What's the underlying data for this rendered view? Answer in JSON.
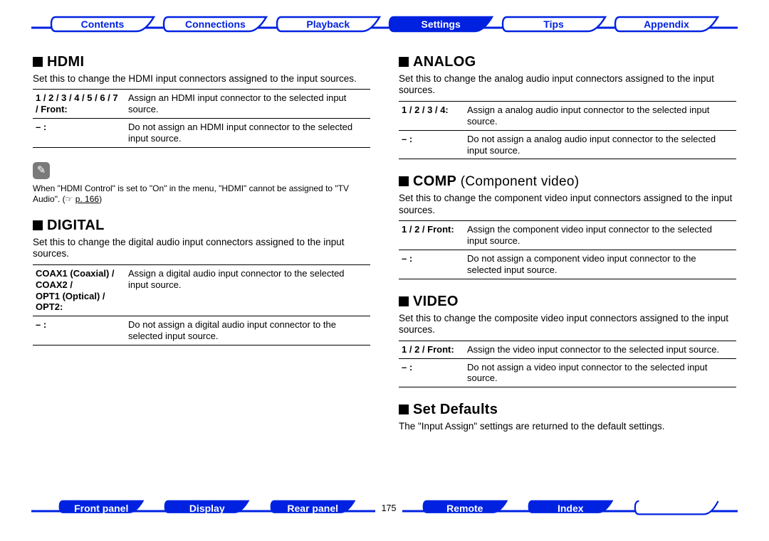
{
  "colors": {
    "brand": "#0022e0",
    "tab_stroke": "#0022e0",
    "tab_fill_active": "#0022e0",
    "tab_fill_inactive": "#ffffff",
    "text_active": "#ffffff",
    "text_inactive": "#0022e0",
    "rule": "#000000",
    "note_icon_bg": "#7a7a7a"
  },
  "page_number": "175",
  "topnav": {
    "items": [
      {
        "label": "Contents",
        "active": false
      },
      {
        "label": "Connections",
        "active": false
      },
      {
        "label": "Playback",
        "active": false
      },
      {
        "label": "Settings",
        "active": true
      },
      {
        "label": "Tips",
        "active": false
      },
      {
        "label": "Appendix",
        "active": false
      }
    ]
  },
  "botnav": {
    "items": [
      {
        "label": "Front panel"
      },
      {
        "label": "Display"
      },
      {
        "label": "Rear panel"
      },
      {
        "label": "Remote"
      },
      {
        "label": "Index"
      }
    ]
  },
  "left": {
    "hdmi": {
      "title": "HDMI",
      "desc": "Set this to change the HDMI input connectors assigned to the input sources.",
      "rows": [
        {
          "key": "1 / 2 / 3 / 4 / 5 / 6 / 7 / Front:",
          "val": "Assign an HDMI input connector to the selected input source."
        },
        {
          "key": "– :",
          "val": "Do not assign an HDMI input connector to the selected input source."
        }
      ],
      "note_icon": "✎",
      "note_text_pre": "When \"HDMI Control\" is set to \"On\" in the menu, \"HDMI\" cannot be assigned to \"TV Audio\". (☞",
      "note_link": "p. 166",
      "note_text_post": ")"
    },
    "digital": {
      "title": "DIGITAL",
      "desc": "Set this to change the digital audio input connectors assigned to the input sources.",
      "row0_key_html": "<b>COAX1</b> (Coaxial) <b>/</b><br><b>COAX2 /</b><br><b>OPT1</b> (Optical) <b>/</b><br><b>OPT2:</b>",
      "row0_val": "Assign a digital audio input connector to the selected input source.",
      "row1_key": "– :",
      "row1_val": "Do not assign a digital audio input connector to the selected input source."
    }
  },
  "right": {
    "analog": {
      "title": "ANALOG",
      "desc": "Set this to change the analog audio input connectors assigned to the input sources.",
      "rows": [
        {
          "key": "1 / 2 / 3 / 4:",
          "val": "Assign a analog audio input connector to the selected input source."
        },
        {
          "key": "– :",
          "val": "Do not assign a analog audio input connector to the selected input source."
        }
      ]
    },
    "comp": {
      "title": "COMP",
      "subtitle": "(Component video)",
      "desc": "Set this to change the component video input connectors assigned to the input sources.",
      "rows": [
        {
          "key": "1 / 2 / Front:",
          "val": "Assign the component video input connector to the selected input source."
        },
        {
          "key": "– :",
          "val": "Do not assign a component video input connector to the selected input source."
        }
      ]
    },
    "video": {
      "title": "VIDEO",
      "desc": "Set this to change the composite video input connectors assigned to the input sources.",
      "rows": [
        {
          "key": "1 / 2 / Front:",
          "val": "Assign the video input connector to the selected input source."
        },
        {
          "key": "– :",
          "val": "Do not assign a video input connector to the selected input source."
        }
      ]
    },
    "setdef": {
      "title": "Set Defaults",
      "desc": "The \"Input Assign\" settings are returned to the default settings."
    }
  }
}
